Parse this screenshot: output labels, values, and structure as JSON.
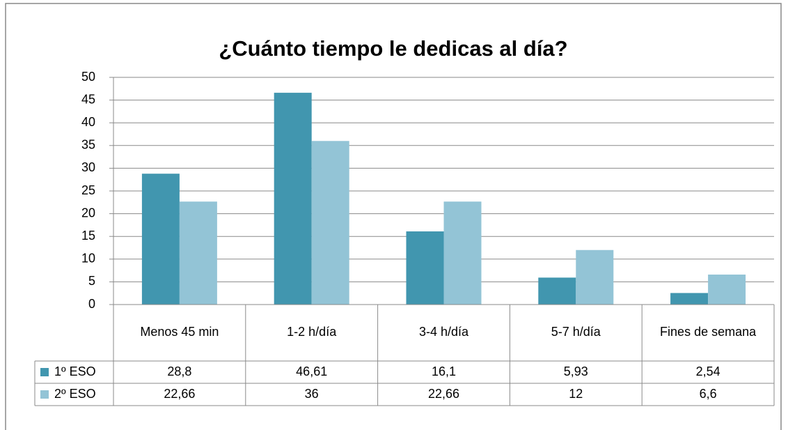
{
  "chart_data": {
    "type": "bar",
    "title": "¿Cuánto tiempo le dedicas al día?",
    "categories": [
      "Menos 45 min",
      "1-2 h/día",
      "3-4 h/día",
      "5-7 h/día",
      "Fines de semana"
    ],
    "series": [
      {
        "name": "1º ESO",
        "color": "#4196af",
        "values": [
          28.8,
          46.61,
          16.1,
          5.93,
          2.54
        ],
        "value_labels": [
          "28,8",
          "46,61",
          "16,1",
          "5,93",
          "2,54"
        ]
      },
      {
        "name": "2º ESO",
        "color": "#93c4d6",
        "values": [
          22.66,
          36,
          22.66,
          12,
          6.6
        ],
        "value_labels": [
          "22,66",
          "36",
          "22,66",
          "12",
          "6,6"
        ]
      }
    ],
    "ylim": [
      0,
      50
    ],
    "yticks": [
      0,
      5,
      10,
      15,
      20,
      25,
      30,
      35,
      40,
      45,
      50
    ],
    "grid": true
  }
}
